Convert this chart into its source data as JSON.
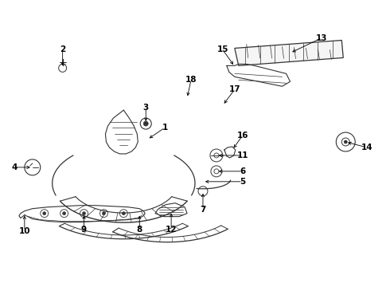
{
  "bg_color": "#ffffff",
  "line_color": "#333333",
  "text_color": "#000000",
  "lw": 0.8,
  "label_fs": 7.5
}
